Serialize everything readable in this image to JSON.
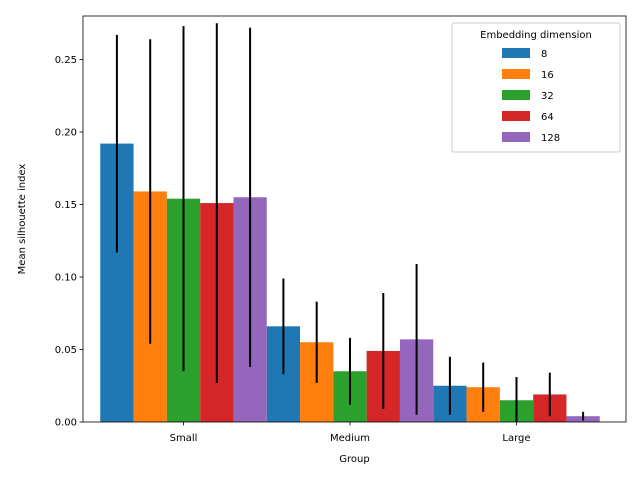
{
  "chart_data": {
    "type": "bar",
    "categories": [
      "Small",
      "Medium",
      "Large"
    ],
    "series": [
      {
        "name": "8",
        "color": "#1f77b4",
        "values": [
          0.192,
          0.066,
          0.025
        ],
        "errors": [
          0.075,
          0.033,
          0.02
        ]
      },
      {
        "name": "16",
        "color": "#ff7f0e",
        "values": [
          0.159,
          0.055,
          0.024
        ],
        "errors": [
          0.105,
          0.028,
          0.017
        ]
      },
      {
        "name": "32",
        "color": "#2ca02c",
        "values": [
          0.154,
          0.035,
          0.015
        ],
        "errors": [
          0.119,
          0.023,
          0.016
        ]
      },
      {
        "name": "64",
        "color": "#d62728",
        "values": [
          0.151,
          0.049,
          0.019
        ],
        "errors": [
          0.124,
          0.04,
          0.015
        ]
      },
      {
        "name": "128",
        "color": "#9467bd",
        "values": [
          0.155,
          0.057,
          0.004
        ],
        "errors": [
          0.117,
          0.052,
          0.003
        ]
      }
    ],
    "title": "",
    "xlabel": "Group",
    "ylabel": "Mean silhouette index",
    "ylim": [
      0,
      0.28
    ],
    "yticks": [
      "0.00",
      "0.05",
      "0.10",
      "0.15",
      "0.20",
      "0.25"
    ],
    "ytick_values": [
      0,
      0.05,
      0.1,
      0.15,
      0.2,
      0.25
    ],
    "legend": {
      "title": "Embedding dimension",
      "placement": "top-right"
    },
    "grid": false
  }
}
